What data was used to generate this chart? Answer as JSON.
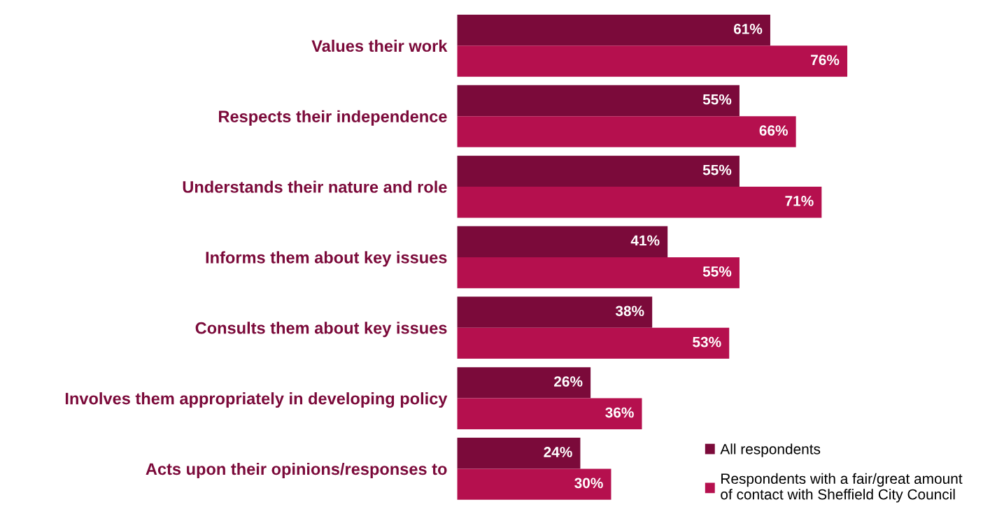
{
  "chart_data": {
    "type": "bar",
    "orientation": "horizontal",
    "categories": [
      "Values their work",
      "Respects their independence",
      "Understands their nature and role",
      "Informs them about key issues",
      "Consults them about key issues",
      "Involves them appropriately in developing policy",
      "Acts upon their opinions/responses to"
    ],
    "series": [
      {
        "name": "All respondents",
        "color": "#7b0a3a",
        "values": [
          61,
          55,
          55,
          41,
          38,
          26,
          24
        ],
        "value_labels": [
          "61%",
          "55%",
          "55%",
          "41%",
          "38%",
          "26%",
          "24%"
        ]
      },
      {
        "name": "Respondents with a fair/great amount\nof contact with Sheffield City Council",
        "color": "#b5104e",
        "values": [
          76,
          66,
          71,
          55,
          53,
          36,
          30
        ],
        "value_labels": [
          "76%",
          "66%",
          "71%",
          "55%",
          "53%",
          "36%",
          "30%"
        ]
      }
    ],
    "tick_labels": "y",
    "grid": false,
    "legend": "bottom right"
  }
}
